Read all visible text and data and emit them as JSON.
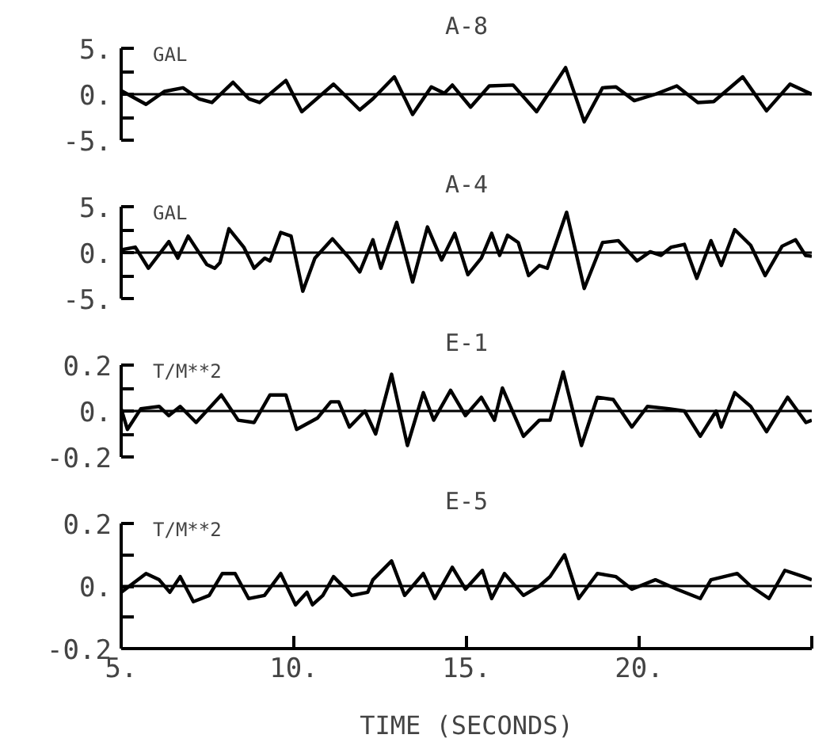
{
  "chart_data": [
    {
      "type": "line",
      "title": "A-8",
      "ylabel": "GAL",
      "xlim": [
        5,
        25
      ],
      "ylim": [
        -5,
        5
      ],
      "yticks": [
        {
          "value": 5,
          "label": "5."
        },
        {
          "value": 2.5,
          "label": null
        },
        {
          "value": 0,
          "label": "0."
        },
        {
          "value": -2.5,
          "label": null
        },
        {
          "value": -5,
          "label": "-5."
        }
      ],
      "tick_labels": "y",
      "grid": false,
      "color": "#000000",
      "ref_lines": [
        {
          "axis": "y",
          "value": 0,
          "label": null
        }
      ],
      "x": [
        5.0,
        5.72,
        6.25,
        6.79,
        7.25,
        7.63,
        8.24,
        8.7,
        9.01,
        9.77,
        10.23,
        11.15,
        11.91,
        12.29,
        12.91,
        13.44,
        13.98,
        14.36,
        14.59,
        15.12,
        15.66,
        16.35,
        17.03,
        17.87,
        18.41,
        18.94,
        19.33,
        19.86,
        20.47,
        21.09,
        21.7,
        22.16,
        23.0,
        23.69,
        24.37,
        25.0
      ],
      "values": [
        0.4,
        -1.1,
        0.3,
        0.7,
        -0.5,
        -0.9,
        1.3,
        -0.5,
        -0.9,
        1.5,
        -1.9,
        1.1,
        -1.7,
        -0.5,
        1.9,
        -2.2,
        0.8,
        0.1,
        1.0,
        -1.4,
        0.9,
        1.0,
        -1.9,
        2.9,
        -3.0,
        0.7,
        0.8,
        -0.7,
        0.0,
        0.9,
        -0.9,
        -0.8,
        1.9,
        -1.8,
        1.1,
        0.0
      ]
    },
    {
      "type": "line",
      "title": "A-4",
      "ylabel": "GAL",
      "xlim": [
        5,
        25
      ],
      "ylim": [
        -5,
        5
      ],
      "yticks": [
        {
          "value": 5,
          "label": "5."
        },
        {
          "value": 2.5,
          "label": null
        },
        {
          "value": 0,
          "label": "0."
        },
        {
          "value": -2.5,
          "label": null
        },
        {
          "value": -5,
          "label": "-5."
        }
      ],
      "tick_labels": "y",
      "grid": false,
      "color": "#000000",
      "ref_lines": [
        {
          "axis": "y",
          "value": 0,
          "label": null
        }
      ],
      "x": [
        5.0,
        5.41,
        5.79,
        6.38,
        6.64,
        6.94,
        7.48,
        7.71,
        7.86,
        8.12,
        8.55,
        8.85,
        9.16,
        9.31,
        9.62,
        9.92,
        10.26,
        10.61,
        11.12,
        11.61,
        11.91,
        12.29,
        12.52,
        12.98,
        13.44,
        13.87,
        14.28,
        14.66,
        15.04,
        15.43,
        15.73,
        15.96,
        16.19,
        16.5,
        16.8,
        17.11,
        17.34,
        17.9,
        18.41,
        18.94,
        19.4,
        19.94,
        20.32,
        20.63,
        20.93,
        21.31,
        21.67,
        22.08,
        22.38,
        22.77,
        23.23,
        23.65,
        24.14,
        24.53,
        24.82,
        25.0
      ],
      "values": [
        0.3,
        0.6,
        -1.7,
        1.2,
        -0.6,
        1.8,
        -1.3,
        -1.7,
        -1.1,
        2.6,
        0.6,
        -1.7,
        -0.6,
        -0.9,
        2.2,
        1.8,
        -4.2,
        -0.6,
        1.5,
        -0.6,
        -2.1,
        1.4,
        -1.7,
        3.3,
        -3.2,
        2.8,
        -0.8,
        2.1,
        -2.4,
        -0.6,
        2.1,
        -0.3,
        1.9,
        1.1,
        -2.5,
        -1.4,
        -1.7,
        4.4,
        -3.9,
        1.1,
        1.3,
        -0.9,
        0.1,
        -0.3,
        0.6,
        0.9,
        -2.8,
        1.3,
        -1.4,
        2.5,
        0.8,
        -2.5,
        0.7,
        1.4,
        -0.3,
        -0.4
      ]
    },
    {
      "type": "line",
      "title": "E-1",
      "ylabel": "T/M**2",
      "xlim": [
        5,
        25
      ],
      "ylim": [
        -0.2,
        0.2
      ],
      "yticks": [
        {
          "value": 0.2,
          "label": "0.2"
        },
        {
          "value": 0.1,
          "label": null
        },
        {
          "value": 0,
          "label": "0."
        },
        {
          "value": -0.1,
          "label": null
        },
        {
          "value": -0.2,
          "label": "-0.2"
        }
      ],
      "tick_labels": "y",
      "grid": false,
      "color": "#000000",
      "ref_lines": [
        {
          "axis": "y",
          "value": 0,
          "label": null
        }
      ],
      "x": [
        5.0,
        5.18,
        5.57,
        6.1,
        6.38,
        6.71,
        7.17,
        7.9,
        8.39,
        8.85,
        9.31,
        9.77,
        10.08,
        10.69,
        11.07,
        11.3,
        11.61,
        12.06,
        12.37,
        12.83,
        13.29,
        13.75,
        14.05,
        14.54,
        14.97,
        15.43,
        15.81,
        16.04,
        16.65,
        17.11,
        17.42,
        17.8,
        18.33,
        18.79,
        19.25,
        19.79,
        20.24,
        20.86,
        21.31,
        21.77,
        22.23,
        22.38,
        22.77,
        23.23,
        23.69,
        24.3,
        24.83,
        25.0
      ],
      "values": [
        0.01,
        -0.08,
        0.01,
        0.02,
        -0.02,
        0.02,
        -0.05,
        0.07,
        -0.04,
        -0.05,
        0.07,
        0.07,
        -0.08,
        -0.03,
        0.04,
        0.04,
        -0.07,
        0.0,
        -0.1,
        0.16,
        -0.15,
        0.08,
        -0.04,
        0.09,
        -0.02,
        0.06,
        -0.04,
        0.1,
        -0.11,
        -0.04,
        -0.04,
        0.17,
        -0.15,
        0.06,
        0.05,
        -0.07,
        0.02,
        0.01,
        0.0,
        -0.11,
        0.0,
        -0.07,
        0.08,
        0.02,
        -0.09,
        0.06,
        -0.05,
        -0.04
      ]
    },
    {
      "type": "line",
      "title": "E-5",
      "ylabel": "T/M**2",
      "xlabel": "TIME (SECONDS)",
      "xlim": [
        5,
        25
      ],
      "ylim": [
        -0.2,
        0.2
      ],
      "xticks": [
        {
          "value": 5,
          "label": "5."
        },
        {
          "value": 10,
          "label": "10."
        },
        {
          "value": 15,
          "label": "15."
        },
        {
          "value": 20,
          "label": "20."
        },
        {
          "value": 25,
          "label": null
        }
      ],
      "yticks": [
        {
          "value": 0.2,
          "label": "0.2"
        },
        {
          "value": 0.1,
          "label": null
        },
        {
          "value": 0,
          "label": "0."
        },
        {
          "value": -0.1,
          "label": null
        },
        {
          "value": -0.2,
          "label": "-0.2"
        }
      ],
      "grid": false,
      "color": "#000000",
      "ref_lines": [
        {
          "axis": "y",
          "value": 0,
          "label": null
        }
      ],
      "x": [
        5.0,
        5.72,
        6.1,
        6.41,
        6.71,
        7.09,
        7.55,
        7.93,
        8.3,
        8.69,
        9.15,
        9.62,
        10.05,
        10.38,
        10.54,
        10.84,
        11.15,
        11.68,
        12.14,
        12.29,
        12.83,
        13.21,
        13.75,
        14.08,
        14.59,
        14.97,
        15.46,
        15.73,
        16.1,
        16.65,
        17.11,
        17.42,
        17.84,
        18.25,
        18.79,
        19.33,
        19.79,
        20.47,
        21.09,
        21.77,
        22.08,
        22.84,
        23.23,
        23.76,
        24.22,
        24.76,
        25.0
      ],
      "values": [
        -0.02,
        0.04,
        0.02,
        -0.02,
        0.03,
        -0.05,
        -0.03,
        0.04,
        0.04,
        -0.04,
        -0.03,
        0.04,
        -0.06,
        -0.02,
        -0.06,
        -0.03,
        0.03,
        -0.03,
        -0.02,
        0.02,
        0.08,
        -0.03,
        0.04,
        -0.04,
        0.06,
        -0.01,
        0.05,
        -0.04,
        0.04,
        -0.03,
        0.0,
        0.03,
        0.1,
        -0.04,
        0.04,
        0.03,
        -0.01,
        0.02,
        -0.01,
        -0.04,
        0.02,
        0.04,
        0.0,
        -0.04,
        0.05,
        0.03,
        0.02
      ]
    }
  ]
}
